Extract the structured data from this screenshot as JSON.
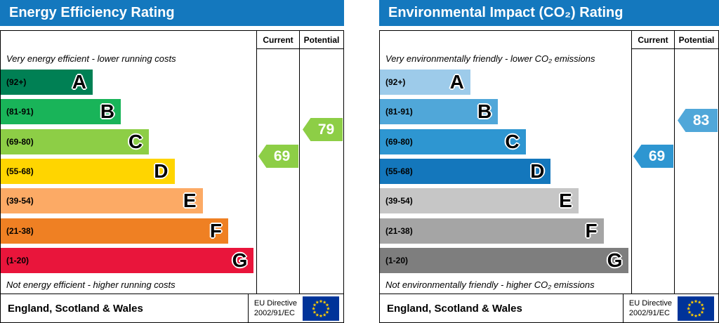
{
  "chart_data": [
    {
      "type": "bar",
      "title": "Energy Efficiency Rating",
      "header_color": "#1478be",
      "columns": [
        "Current",
        "Potential"
      ],
      "top_caption": "Very energy efficient - lower running costs",
      "bottom_caption": "Not energy efficient - higher running costs",
      "bands": [
        {
          "label": "(92+)",
          "letter": "A",
          "color": "#008054",
          "width_pct": 36
        },
        {
          "label": "(81-91)",
          "letter": "B",
          "color": "#19b459",
          "width_pct": 47
        },
        {
          "label": "(69-80)",
          "letter": "C",
          "color": "#8dce46",
          "width_pct": 58
        },
        {
          "label": "(55-68)",
          "letter": "D",
          "color": "#ffd500",
          "width_pct": 68
        },
        {
          "label": "(39-54)",
          "letter": "E",
          "color": "#fcaa65",
          "width_pct": 79
        },
        {
          "label": "(21-38)",
          "letter": "F",
          "color": "#ef8023",
          "width_pct": 89
        },
        {
          "label": "(1-20)",
          "letter": "G",
          "color": "#e9153b",
          "width_pct": 99
        }
      ],
      "current": {
        "value": 69,
        "color": "#8dce46"
      },
      "potential": {
        "value": 79,
        "color": "#8dce46"
      },
      "footer": "England, Scotland & Wales",
      "directive_line1": "EU Directive",
      "directive_line2": "2002/91/EC"
    },
    {
      "type": "bar",
      "title": "Environmental Impact (CO₂) Rating",
      "header_color": "#1478be",
      "columns": [
        "Current",
        "Potential"
      ],
      "top_caption": "Very environmentally friendly - lower CO₂ emissions",
      "bottom_caption": "Not environmentally friendly - higher CO₂ emissions",
      "bands": [
        {
          "label": "(92+)",
          "letter": "A",
          "color": "#9dcbea",
          "width_pct": 36
        },
        {
          "label": "(81-91)",
          "letter": "B",
          "color": "#50a7d9",
          "width_pct": 47
        },
        {
          "label": "(69-80)",
          "letter": "C",
          "color": "#2e96d1",
          "width_pct": 58
        },
        {
          "label": "(55-68)",
          "letter": "D",
          "color": "#1477bc",
          "width_pct": 68
        },
        {
          "label": "(39-54)",
          "letter": "E",
          "color": "#c6c6c6",
          "width_pct": 79
        },
        {
          "label": "(21-38)",
          "letter": "F",
          "color": "#a5a5a5",
          "width_pct": 89
        },
        {
          "label": "(1-20)",
          "letter": "G",
          "color": "#7e7e7e",
          "width_pct": 99
        }
      ],
      "current": {
        "value": 69,
        "color": "#2e96d1"
      },
      "potential": {
        "value": 83,
        "color": "#50a7d9"
      },
      "footer": "England, Scotland & Wales",
      "directive_line1": "EU Directive",
      "directive_line2": "2002/91/EC"
    }
  ]
}
